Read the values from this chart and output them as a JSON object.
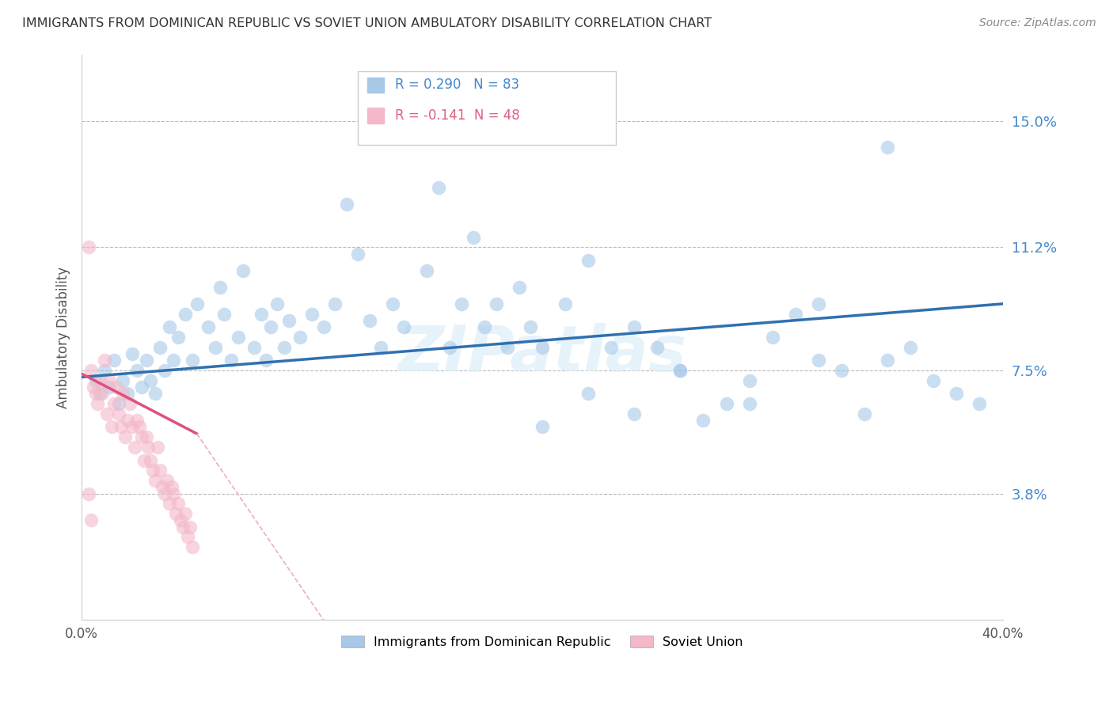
{
  "title": "IMMIGRANTS FROM DOMINICAN REPUBLIC VS SOVIET UNION AMBULATORY DISABILITY CORRELATION CHART",
  "source": "Source: ZipAtlas.com",
  "ylabel": "Ambulatory Disability",
  "ytick_labels": [
    "15.0%",
    "11.2%",
    "7.5%",
    "3.8%"
  ],
  "ytick_values": [
    0.15,
    0.112,
    0.075,
    0.038
  ],
  "xlim": [
    0.0,
    0.4
  ],
  "ylim": [
    0.0,
    0.17
  ],
  "color_blue": "#a8c8e8",
  "color_pink": "#f4b8c8",
  "line_blue": "#3070b0",
  "line_pink": "#e05080",
  "line_pink_dash": "#e8b0c0",
  "watermark": "ZIPatlas",
  "dr_x": [
    0.006,
    0.008,
    0.01,
    0.012,
    0.014,
    0.016,
    0.018,
    0.02,
    0.022,
    0.024,
    0.026,
    0.028,
    0.03,
    0.032,
    0.034,
    0.036,
    0.038,
    0.04,
    0.042,
    0.045,
    0.048,
    0.05,
    0.055,
    0.058,
    0.06,
    0.062,
    0.065,
    0.068,
    0.07,
    0.075,
    0.078,
    0.08,
    0.082,
    0.085,
    0.088,
    0.09,
    0.095,
    0.1,
    0.105,
    0.11,
    0.115,
    0.12,
    0.125,
    0.13,
    0.135,
    0.14,
    0.15,
    0.155,
    0.16,
    0.165,
    0.17,
    0.175,
    0.18,
    0.185,
    0.19,
    0.195,
    0.2,
    0.21,
    0.22,
    0.23,
    0.24,
    0.25,
    0.26,
    0.27,
    0.28,
    0.29,
    0.3,
    0.31,
    0.32,
    0.33,
    0.34,
    0.35,
    0.36,
    0.37,
    0.38,
    0.39,
    0.32,
    0.35,
    0.29,
    0.26,
    0.24,
    0.22,
    0.2
  ],
  "dr_y": [
    0.072,
    0.068,
    0.075,
    0.07,
    0.078,
    0.065,
    0.072,
    0.068,
    0.08,
    0.075,
    0.07,
    0.078,
    0.072,
    0.068,
    0.082,
    0.075,
    0.088,
    0.078,
    0.085,
    0.092,
    0.078,
    0.095,
    0.088,
    0.082,
    0.1,
    0.092,
    0.078,
    0.085,
    0.105,
    0.082,
    0.092,
    0.078,
    0.088,
    0.095,
    0.082,
    0.09,
    0.085,
    0.092,
    0.088,
    0.095,
    0.125,
    0.11,
    0.09,
    0.082,
    0.095,
    0.088,
    0.105,
    0.13,
    0.082,
    0.095,
    0.115,
    0.088,
    0.095,
    0.082,
    0.1,
    0.088,
    0.082,
    0.095,
    0.108,
    0.082,
    0.088,
    0.082,
    0.075,
    0.06,
    0.065,
    0.072,
    0.085,
    0.092,
    0.078,
    0.075,
    0.062,
    0.142,
    0.082,
    0.072,
    0.068,
    0.065,
    0.095,
    0.078,
    0.065,
    0.075,
    0.062,
    0.068,
    0.058
  ],
  "su_x": [
    0.003,
    0.004,
    0.005,
    0.006,
    0.007,
    0.008,
    0.009,
    0.01,
    0.011,
    0.012,
    0.013,
    0.014,
    0.015,
    0.016,
    0.017,
    0.018,
    0.019,
    0.02,
    0.021,
    0.022,
    0.023,
    0.024,
    0.025,
    0.026,
    0.027,
    0.028,
    0.029,
    0.03,
    0.031,
    0.032,
    0.033,
    0.034,
    0.035,
    0.036,
    0.037,
    0.038,
    0.039,
    0.04,
    0.041,
    0.042,
    0.043,
    0.044,
    0.045,
    0.046,
    0.047,
    0.048,
    0.003,
    0.004
  ],
  "su_y": [
    0.112,
    0.075,
    0.07,
    0.068,
    0.065,
    0.072,
    0.068,
    0.078,
    0.062,
    0.072,
    0.058,
    0.065,
    0.07,
    0.062,
    0.058,
    0.068,
    0.055,
    0.06,
    0.065,
    0.058,
    0.052,
    0.06,
    0.058,
    0.055,
    0.048,
    0.055,
    0.052,
    0.048,
    0.045,
    0.042,
    0.052,
    0.045,
    0.04,
    0.038,
    0.042,
    0.035,
    0.04,
    0.038,
    0.032,
    0.035,
    0.03,
    0.028,
    0.032,
    0.025,
    0.028,
    0.022,
    0.038,
    0.03
  ]
}
